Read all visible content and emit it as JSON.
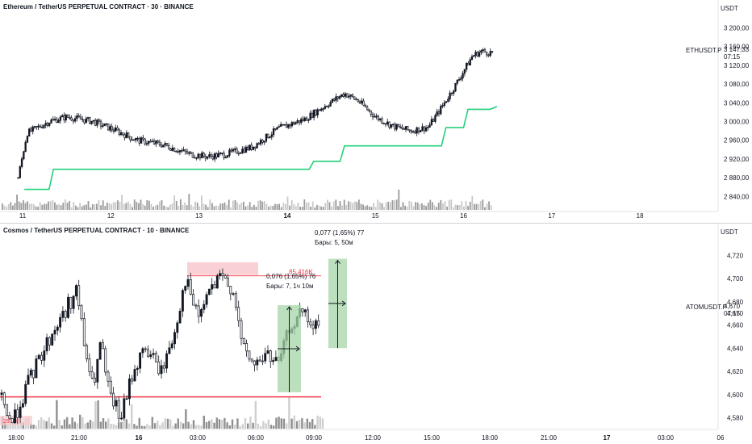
{
  "top": {
    "title": "Ethereum / TetherUS PERPETUAL CONTRACT · 30 · BINANCE",
    "unit": "USDT",
    "symbol": "ETHUSDT.P",
    "last_price": "3 147,33",
    "countdown": "07:15",
    "colors": {
      "up": "#ffffff",
      "down": "#131722",
      "stop_line": "#22d17a",
      "volume": "#c9c9c9"
    }
  },
  "bottom": {
    "title": "Cosmos / TetherUS PERPETUAL CONTRACT · 10 · BINANCE",
    "unit": "USDT",
    "symbol": "ATOMUSDT.P",
    "last_price": "4,670",
    "countdown": "07:15",
    "sell_zone_label": "85.416K",
    "support_zone_label": "29.6K",
    "measure1": {
      "line1": "0,076 (1,65%) 76",
      "line2": "Бары: 7, 1ч 10м"
    },
    "measure2": {
      "line1": "0,077 (1,65%) 77",
      "line2": "Бары: 5, 50м"
    },
    "colors": {
      "support_line": "#f23645",
      "sell_zone": "#f8c9cd",
      "measure": "#a5d6a7"
    }
  },
  "chart_data": [
    {
      "type": "candlestick",
      "title": "Ethereum / TetherUS PERPETUAL CONTRACT · 30 · BINANCE",
      "y_ticks": [
        "3 200,00",
        "3 160,00",
        "3 120,00",
        "3 080,00",
        "3 040,00",
        "3 000,00",
        "2 960,00",
        "2 920,00",
        "2 880,00",
        "2 840,00"
      ],
      "x_ticks": [
        "11",
        "12",
        "13",
        "14",
        "15",
        "16",
        "17",
        "18"
      ],
      "bold_x_tick": "14",
      "ylim": [
        2825,
        3225
      ],
      "trend": [
        [
          10.95,
          2880
        ],
        [
          11.05,
          2975
        ],
        [
          11.3,
          3000
        ],
        [
          11.5,
          3010
        ],
        [
          11.8,
          3000
        ],
        [
          12.0,
          2985
        ],
        [
          12.3,
          2960
        ],
        [
          12.6,
          2950
        ],
        [
          12.9,
          2930
        ],
        [
          13.1,
          2925
        ],
        [
          13.3,
          2930
        ],
        [
          13.6,
          2945
        ],
        [
          13.9,
          2985
        ],
        [
          14.2,
          3005
        ],
        [
          14.4,
          3030
        ],
        [
          14.65,
          3060
        ],
        [
          14.8,
          3045
        ],
        [
          15.0,
          3010
        ],
        [
          15.2,
          2990
        ],
        [
          15.4,
          2980
        ],
        [
          15.6,
          2988
        ],
        [
          15.75,
          3030
        ],
        [
          15.9,
          3075
        ],
        [
          16.1,
          3140
        ],
        [
          16.2,
          3150
        ],
        [
          16.3,
          3147
        ]
      ],
      "stop_line": [
        [
          11.02,
          2855
        ],
        [
          11.3,
          2855
        ],
        [
          11.35,
          2898
        ],
        [
          14.25,
          2898
        ],
        [
          14.3,
          2915
        ],
        [
          14.6,
          2915
        ],
        [
          14.65,
          2948
        ],
        [
          15.75,
          2948
        ],
        [
          15.8,
          2987
        ],
        [
          16.0,
          2987
        ],
        [
          16.05,
          3026
        ],
        [
          16.3,
          3026
        ],
        [
          16.38,
          3032
        ]
      ]
    },
    {
      "type": "candlestick",
      "title": "Cosmos / TetherUS PERPETUAL CONTRACT · 10 · BINANCE",
      "y_ticks": [
        "4,720",
        "4,700",
        "4,680",
        "4,670",
        "4,660",
        "4,640",
        "4,620",
        "4,600",
        "4,580"
      ],
      "x_ticks": [
        "18:00",
        "21:00",
        "16",
        "03:00",
        "06:00",
        "09:00",
        "12:00",
        "15:00",
        "18:00",
        "21:00",
        "17",
        "03:00",
        "06"
      ],
      "bold_x_ticks": [
        "16",
        "17"
      ],
      "ylim": [
        4.572,
        4.732
      ],
      "trend": [
        [
          0,
          4.6
        ],
        [
          15,
          4.575
        ],
        [
          35,
          4.61
        ],
        [
          55,
          4.64
        ],
        [
          75,
          4.665
        ],
        [
          95,
          4.69
        ],
        [
          105,
          4.64
        ],
        [
          115,
          4.605
        ],
        [
          125,
          4.645
        ],
        [
          135,
          4.6
        ],
        [
          150,
          4.58
        ],
        [
          165,
          4.62
        ],
        [
          180,
          4.64
        ],
        [
          200,
          4.62
        ],
        [
          215,
          4.65
        ],
        [
          230,
          4.7
        ],
        [
          245,
          4.665
        ],
        [
          260,
          4.69
        ],
        [
          275,
          4.7
        ],
        [
          290,
          4.69
        ],
        [
          300,
          4.64
        ],
        [
          315,
          4.625
        ],
        [
          330,
          4.635
        ],
        [
          345,
          4.625
        ],
        [
          360,
          4.66
        ],
        [
          375,
          4.67
        ],
        [
          390,
          4.655
        ],
        [
          397,
          4.67
        ]
      ],
      "support_level": 4.598,
      "sell_zone": {
        "from": 4.703,
        "to": 4.714
      },
      "measure1": {
        "from": 4.602,
        "to": 4.677
      },
      "measure2": {
        "from": 4.64,
        "to": 4.717
      }
    }
  ]
}
